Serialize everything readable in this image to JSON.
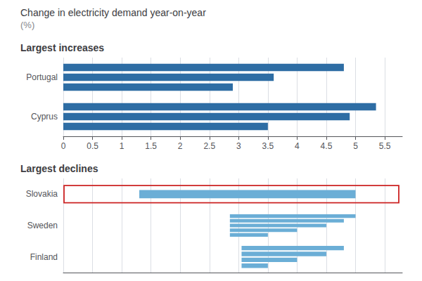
{
  "title": "Change in electricity demand year-on-year",
  "subtitle": "(%)",
  "chart_data": [
    {
      "type": "bar",
      "orientation": "horizontal",
      "title": "Largest increases",
      "categories": [
        "Cyprus",
        "Portugal"
      ],
      "series": [
        {
          "values": [
            3.5,
            2.9
          ]
        },
        {
          "values": [
            4.9,
            3.6
          ]
        },
        {
          "values": [
            5.35,
            4.8
          ]
        }
      ],
      "color": "#2E6DA4",
      "xlim": [
        0,
        5.8
      ],
      "xticks": [
        0,
        0.5,
        1,
        1.5,
        2,
        2.5,
        3,
        3.5,
        4,
        4.5,
        5,
        5.5
      ],
      "grid": true
    },
    {
      "type": "bar",
      "orientation": "horizontal",
      "title": "Largest declines",
      "categories": [
        "Finland",
        "Sweden",
        "Slovakia"
      ],
      "starts": [
        3.05,
        2.85,
        1.3
      ],
      "series": [
        {
          "values": [
            3.5,
            3.5,
            5.0
          ]
        },
        {
          "values": [
            4.0,
            4.0,
            null
          ]
        },
        {
          "values": [
            4.5,
            4.5,
            null
          ]
        },
        {
          "values": [
            4.8,
            4.8,
            null
          ]
        },
        {
          "values": [
            null,
            5.0,
            null
          ]
        }
      ],
      "color": "#6BAED6",
      "xlim": [
        0,
        5.8
      ],
      "xticks": [
        0,
        0.5,
        1,
        1.5,
        2,
        2.5,
        3,
        3.5,
        4,
        4.5,
        5,
        5.5
      ],
      "grid": true,
      "tick_labels": "y",
      "highlight": {
        "category": "Slovakia",
        "color": "#cc2222"
      }
    }
  ]
}
